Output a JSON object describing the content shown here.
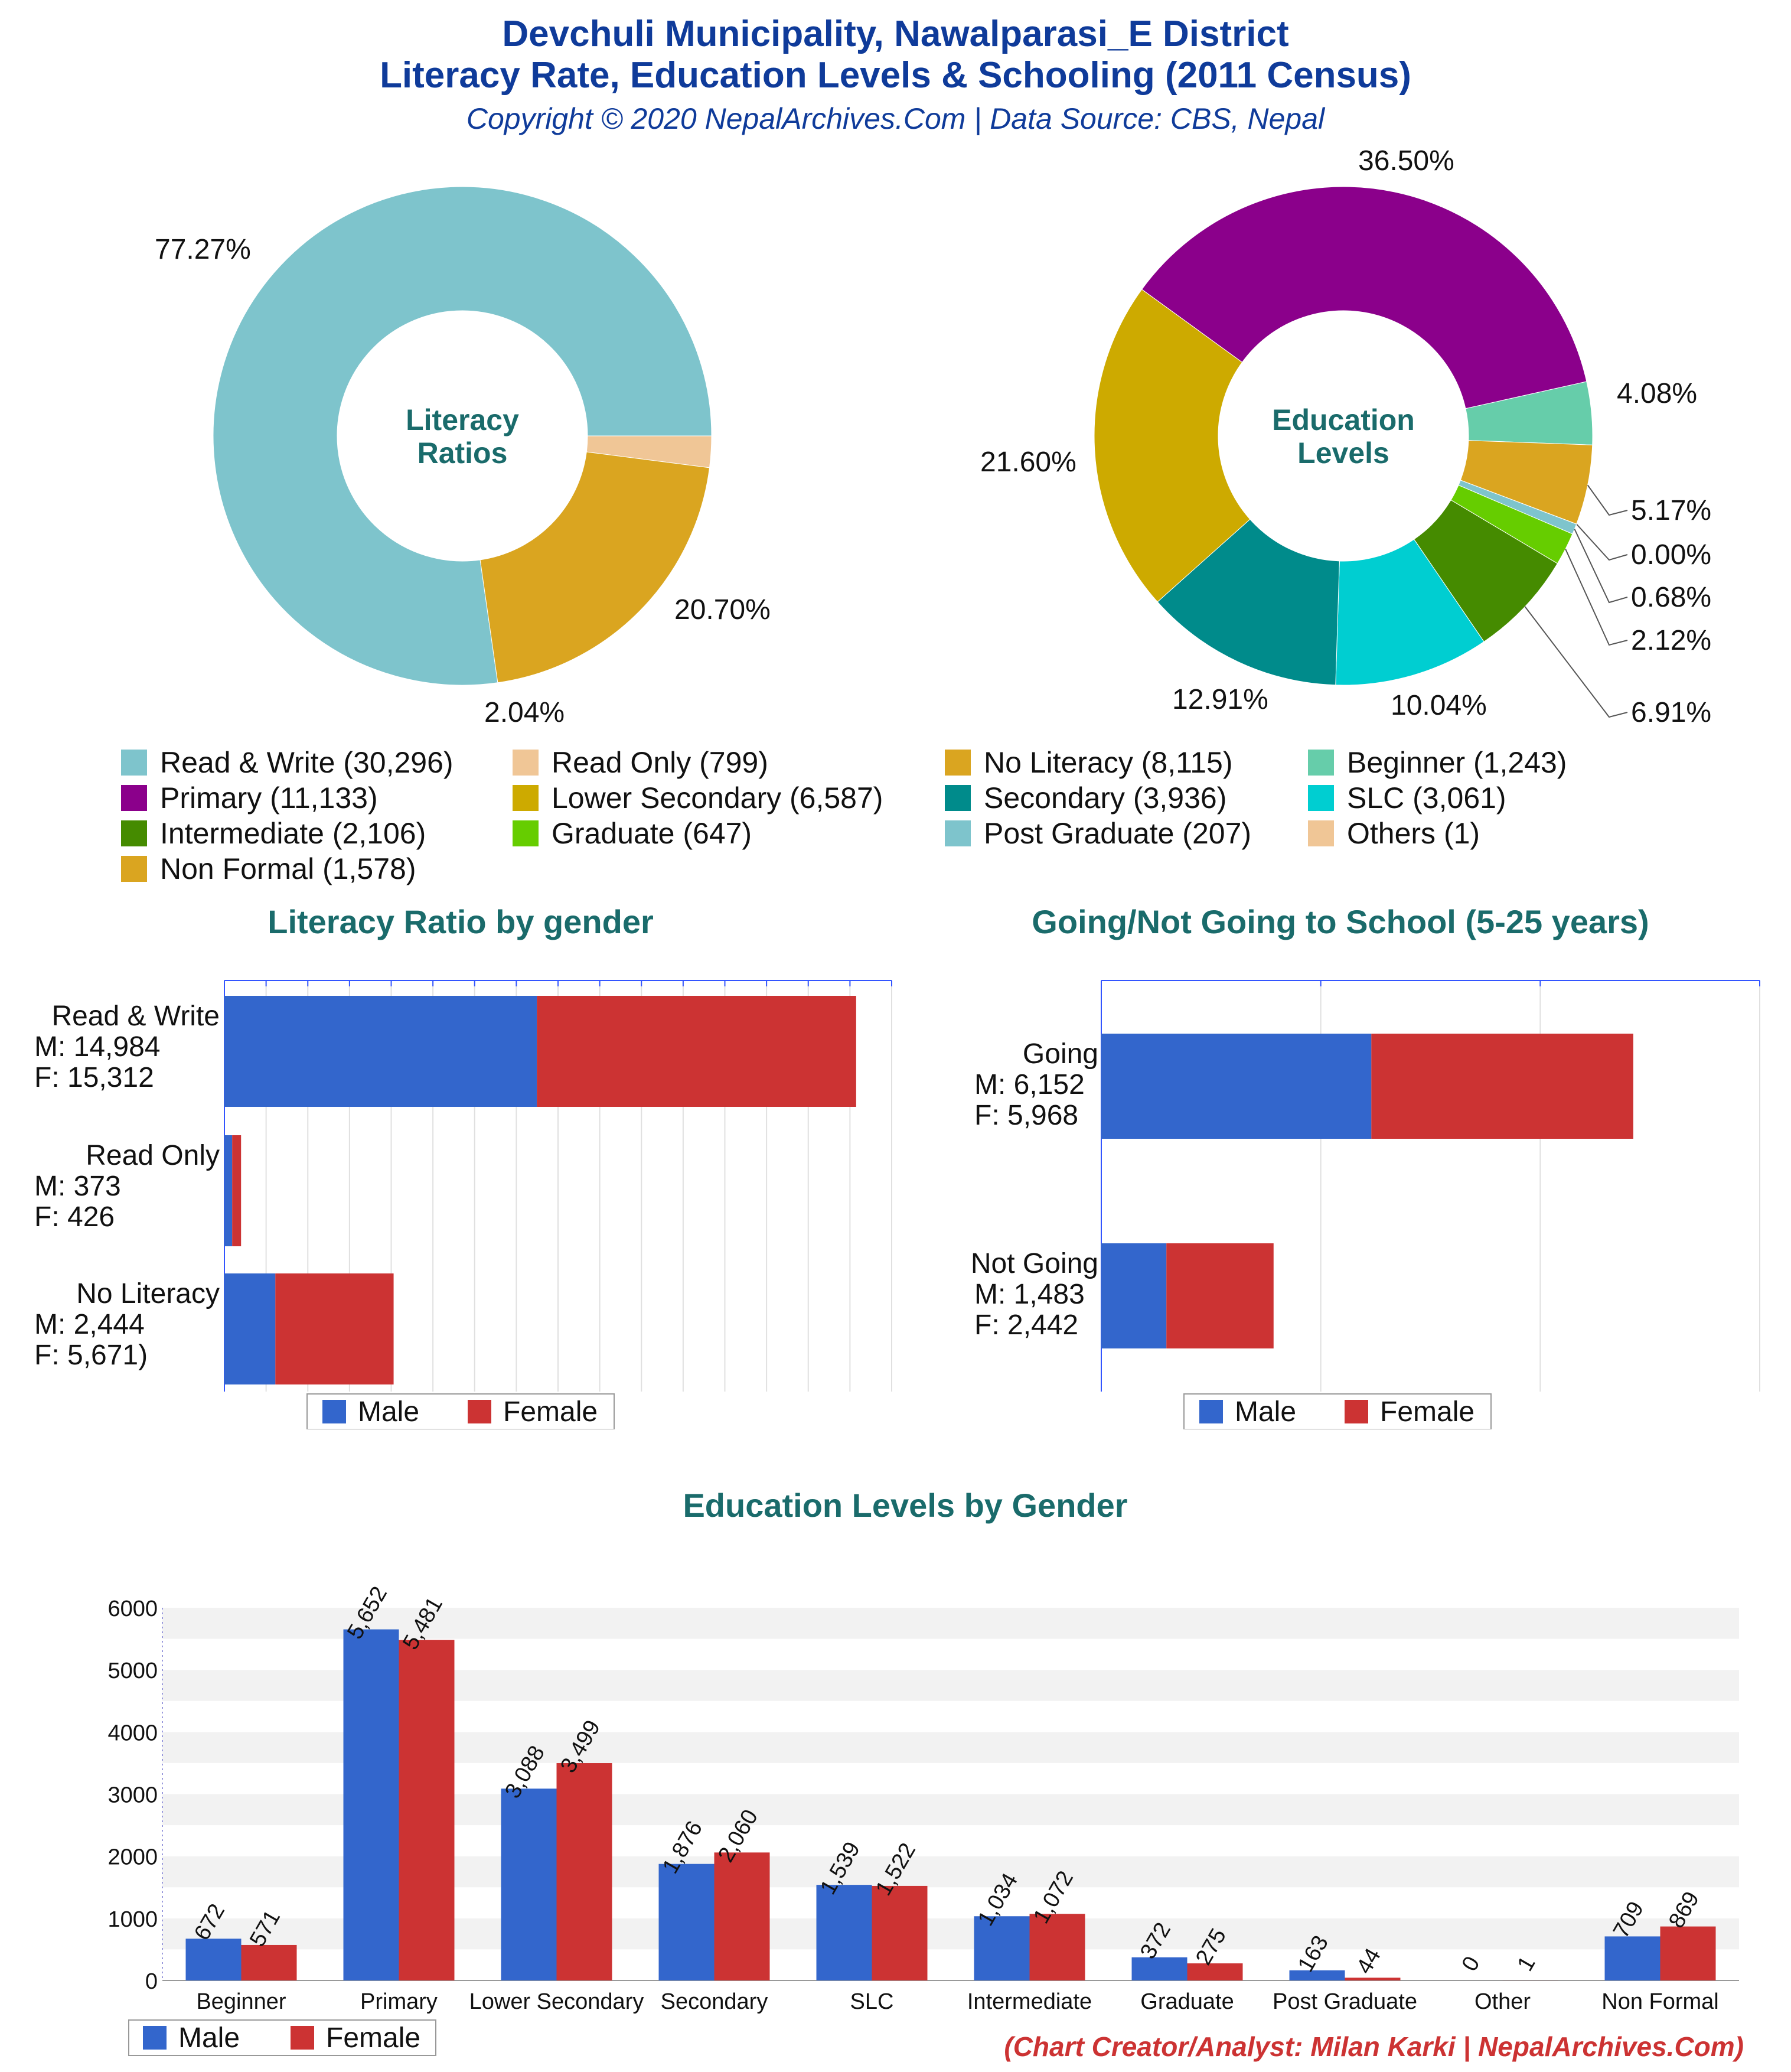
{
  "header": {
    "title_line1": "Devchuli Municipality, Nawalparasi_E District",
    "title_line2": "Literacy Rate, Education Levels & Schooling (2011 Census)",
    "subtitle": "Copyright © 2020 NepalArchives.Com | Data Source: CBS, Nepal"
  },
  "legend_items": [
    {
      "label": "Read & Write (30,296)",
      "color": "#7ec4cc"
    },
    {
      "label": "Read Only (799)",
      "color": "#f0c696"
    },
    {
      "label": "No Literacy (8,115)",
      "color": "#daa520"
    },
    {
      "label": "Beginner (1,243)",
      "color": "#66cdaa"
    },
    {
      "label": "Primary (11,133)",
      "color": "#8b008b"
    },
    {
      "label": "Lower Secondary (6,587)",
      "color": "#cdaa00"
    },
    {
      "label": "Secondary (3,936)",
      "color": "#008b8b"
    },
    {
      "label": "SLC (3,061)",
      "color": "#00ced1"
    },
    {
      "label": "Intermediate (2,106)",
      "color": "#458b00"
    },
    {
      "label": "Graduate (647)",
      "color": "#66cd00"
    },
    {
      "label": "Post Graduate (207)",
      "color": "#7ec4cc"
    },
    {
      "label": "Others (1)",
      "color": "#f0c696"
    },
    {
      "label": "Non Formal (1,578)",
      "color": "#daa520"
    }
  ],
  "bar_legend": {
    "male": "Male",
    "female": "Female",
    "male_color": "#3366cc",
    "female_color": "#cc3333"
  },
  "credit": "(Chart Creator/Analyst: Milan Karki | NepalArchives.Com)",
  "chart_data": [
    {
      "type": "pie",
      "center_label": [
        "Literacy",
        "Ratios"
      ],
      "labels": [
        "Read & Write",
        "Read Only",
        "No Literacy"
      ],
      "values": [
        30296,
        799,
        8115
      ],
      "percent_labels": [
        "77.27%",
        "2.04%",
        "20.70%"
      ],
      "colors": [
        "#7ec4cc",
        "#f0c696",
        "#daa520"
      ]
    },
    {
      "type": "pie",
      "center_label": [
        "Education",
        "Levels"
      ],
      "labels": [
        "Primary",
        "Beginner",
        "Non Formal",
        "Others",
        "Post Graduate",
        "Graduate",
        "Intermediate",
        "SLC",
        "Secondary",
        "Lower Secondary"
      ],
      "values": [
        11133,
        1243,
        1578,
        1,
        207,
        647,
        2106,
        3061,
        3936,
        6587
      ],
      "percent_labels": [
        "36.50%",
        "4.08%",
        "5.17%",
        "0.00%",
        "0.68%",
        "2.12%",
        "6.91%",
        "10.04%",
        "12.91%",
        "21.60%"
      ],
      "colors": [
        "#8b008b",
        "#66cdaa",
        "#daa520",
        "#f0c696",
        "#7ec4cc",
        "#66cd00",
        "#458b00",
        "#00ced1",
        "#008b8b",
        "#cdaa00"
      ]
    },
    {
      "type": "bar",
      "orientation": "horizontal",
      "stacked": true,
      "title": "Literacy Ratio by gender",
      "categories": [
        "Read & Write",
        "Read Only",
        "No Literacy"
      ],
      "category_labels": [
        [
          "Read & Write",
          "M: 14,984",
          "F: 15,312"
        ],
        [
          "Read Only",
          "M: 373",
          "F: 426"
        ],
        [
          "No Literacy",
          "M: 2,444",
          "F: 5,671)"
        ]
      ],
      "series": [
        {
          "name": "Male",
          "values": [
            14984,
            373,
            2444
          ]
        },
        {
          "name": "Female",
          "values": [
            15312,
            426,
            5671
          ]
        }
      ],
      "xlim": [
        0,
        32000
      ]
    },
    {
      "type": "bar",
      "orientation": "horizontal",
      "stacked": true,
      "title": "Going/Not Going to School (5-25 years)",
      "categories": [
        "Going",
        "Not Going"
      ],
      "category_labels": [
        [
          "Going",
          "M: 6,152",
          "F: 5,968"
        ],
        [
          "Not Going",
          "M: 1,483",
          "F: 2,442"
        ]
      ],
      "series": [
        {
          "name": "Male",
          "values": [
            6152,
            1483
          ]
        },
        {
          "name": "Female",
          "values": [
            5968,
            2442
          ]
        }
      ],
      "xlim": [
        0,
        15000
      ]
    },
    {
      "type": "bar",
      "title": "Education Levels by Gender",
      "categories": [
        "Beginner",
        "Primary",
        "Lower Secondary",
        "Secondary",
        "SLC",
        "Intermediate",
        "Graduate",
        "Post Graduate",
        "Other",
        "Non Formal"
      ],
      "series": [
        {
          "name": "Male",
          "values": [
            672,
            5652,
            3088,
            1876,
            1539,
            1034,
            372,
            163,
            0,
            709
          ],
          "labels": [
            "672",
            "5,652",
            "3,088",
            "1,876",
            "1,539",
            "1,034",
            "372",
            "163",
            "0",
            "709"
          ]
        },
        {
          "name": "Female",
          "values": [
            571,
            5481,
            3499,
            2060,
            1522,
            1072,
            275,
            44,
            1,
            869
          ],
          "labels": [
            "571",
            "5,481",
            "3,499",
            "2,060",
            "1,522",
            "1,072",
            "275",
            "44",
            "1",
            "869"
          ]
        }
      ],
      "yticks": [
        "0",
        "1000",
        "2000",
        "3000",
        "4000",
        "5000",
        "6000"
      ],
      "ylim": [
        0,
        6000
      ],
      "grid": true
    }
  ]
}
